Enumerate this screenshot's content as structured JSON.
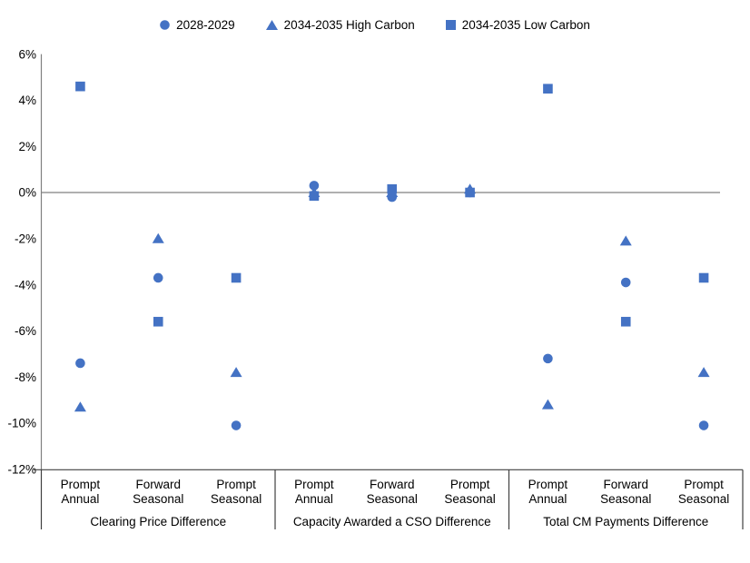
{
  "chart_data": {
    "type": "scatter",
    "title": "",
    "xlabel": "",
    "ylabel": "",
    "ylim": [
      -12,
      6
    ],
    "ytick_step": 2,
    "ytick_suffix": "%",
    "grid": "zero-line-only",
    "legend_position": "top",
    "marker_color": "#4472C4",
    "axis_line_color": "#808080",
    "frame_line_color": "#404040",
    "text_color": "#000000",
    "legend": [
      {
        "label": "2028-2029",
        "marker": "circle"
      },
      {
        "label": "2034-2035 High Carbon",
        "marker": "triangle"
      },
      {
        "label": "2034-2035 Low Carbon",
        "marker": "square"
      }
    ],
    "groups": [
      {
        "label": "Clearing Price Difference",
        "categories": [
          "Prompt Annual",
          "Forward Seasonal",
          "Prompt Seasonal"
        ],
        "series": [
          {
            "name": "2028-2029",
            "marker": "circle",
            "values": [
              -7.4,
              -3.7,
              -10.1
            ]
          },
          {
            "name": "2034-2035 High Carbon",
            "marker": "triangle",
            "values": [
              -9.3,
              -2.0,
              -7.8
            ]
          },
          {
            "name": "2034-2035 Low Carbon",
            "marker": "square",
            "values": [
              4.6,
              -5.6,
              -3.7
            ]
          }
        ]
      },
      {
        "label": "Capacity Awarded a CSO Difference",
        "categories": [
          "Prompt Annual",
          "Forward Seasonal",
          "Prompt Seasonal"
        ],
        "series": [
          {
            "name": "2028-2029",
            "marker": "circle",
            "values": [
              0.3,
              -0.2,
              0.0
            ]
          },
          {
            "name": "2034-2035 High Carbon",
            "marker": "triangle",
            "values": [
              0.0,
              0.0,
              0.15
            ]
          },
          {
            "name": "2034-2035 Low Carbon",
            "marker": "square",
            "values": [
              -0.15,
              0.15,
              0.0
            ]
          }
        ]
      },
      {
        "label": "Total CM Payments Difference",
        "categories": [
          "Prompt Annual",
          "Forward Seasonal",
          "Prompt Seasonal"
        ],
        "series": [
          {
            "name": "2028-2029",
            "marker": "circle",
            "values": [
              -7.2,
              -3.9,
              -10.1
            ]
          },
          {
            "name": "2034-2035 High Carbon",
            "marker": "triangle",
            "values": [
              -9.2,
              -2.1,
              -7.8
            ]
          },
          {
            "name": "2034-2035 Low Carbon",
            "marker": "square",
            "values": [
              4.5,
              -5.6,
              -3.7
            ]
          }
        ]
      }
    ]
  }
}
